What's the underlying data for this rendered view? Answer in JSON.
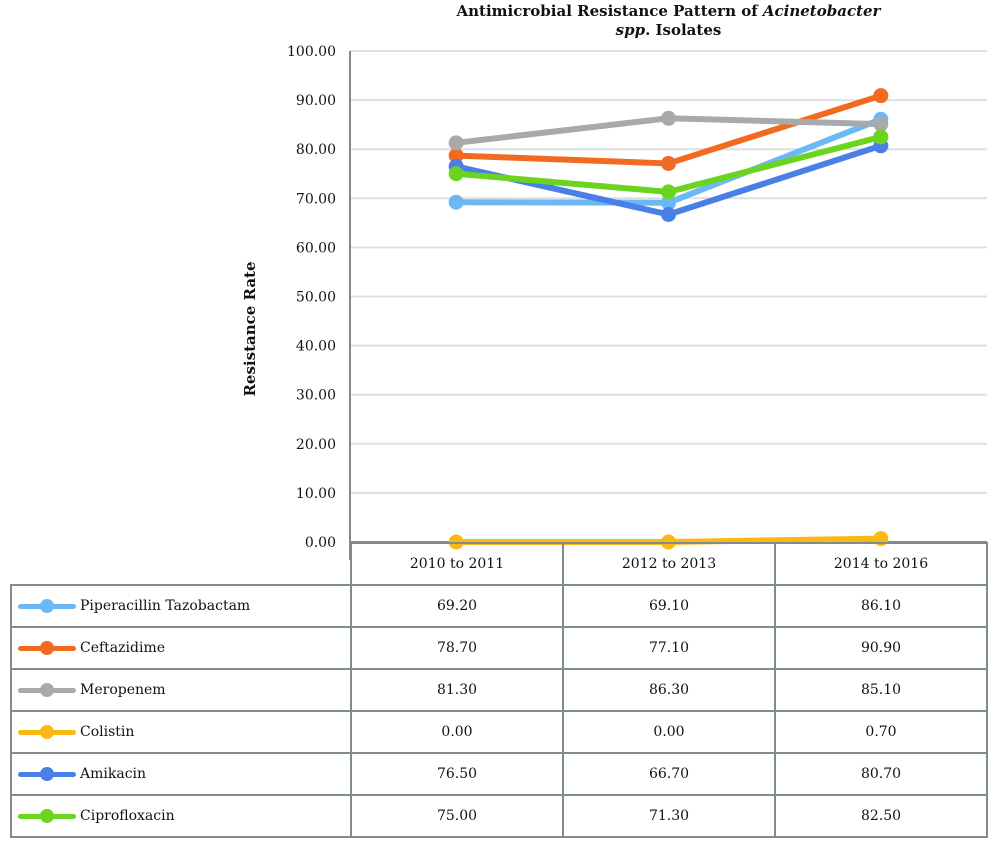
{
  "chart_data": {
    "type": "line",
    "title": "Antimicrobial Resistance Pattern of Acinetobacter spp. Isolates",
    "title_parts": {
      "pre": "Antimicrobial Resistance Pattern of ",
      "italic1": "Acinetobacter",
      "italic2": "spp",
      "post": ". Isolates"
    },
    "xlabel": "",
    "ylabel": "Resistance Rate",
    "ylim": [
      0,
      100
    ],
    "y_ticks": [
      "0.00",
      "10.00",
      "20.00",
      "30.00",
      "40.00",
      "50.00",
      "60.00",
      "70.00",
      "80.00",
      "90.00",
      "100.00"
    ],
    "categories": [
      "2010 to 2011",
      "2012 to 2013",
      "2014 to 2016"
    ],
    "grid": true,
    "legend_placement": "data-table-bottom",
    "series": [
      {
        "name": "Piperacillin Tazobactam",
        "color": "#6cb8f5",
        "values": [
          69.2,
          69.1,
          86.1
        ],
        "labels": [
          "69.20",
          "69.10",
          "86.10"
        ]
      },
      {
        "name": "Ceftazidime",
        "color": "#f26a21",
        "values": [
          78.7,
          77.1,
          90.9
        ],
        "labels": [
          "78.70",
          "77.10",
          "90.90"
        ]
      },
      {
        "name": "Meropenem",
        "color": "#a7aaa9",
        "values": [
          81.3,
          86.3,
          85.1
        ],
        "labels": [
          "81.30",
          "86.30",
          "85.10"
        ]
      },
      {
        "name": "Colistin",
        "color": "#fbb813",
        "values": [
          0.0,
          0.0,
          0.7
        ],
        "labels": [
          "0.00",
          "0.00",
          "0.70"
        ]
      },
      {
        "name": "Amikacin",
        "color": "#4a7fe8",
        "values": [
          76.5,
          66.7,
          80.7
        ],
        "labels": [
          "76.50",
          "66.70",
          "80.70"
        ]
      },
      {
        "name": "Ciprofloxacin",
        "color": "#6bd41f",
        "values": [
          75.0,
          71.3,
          82.5
        ],
        "labels": [
          "75.00",
          "71.30",
          "82.50"
        ]
      }
    ]
  }
}
